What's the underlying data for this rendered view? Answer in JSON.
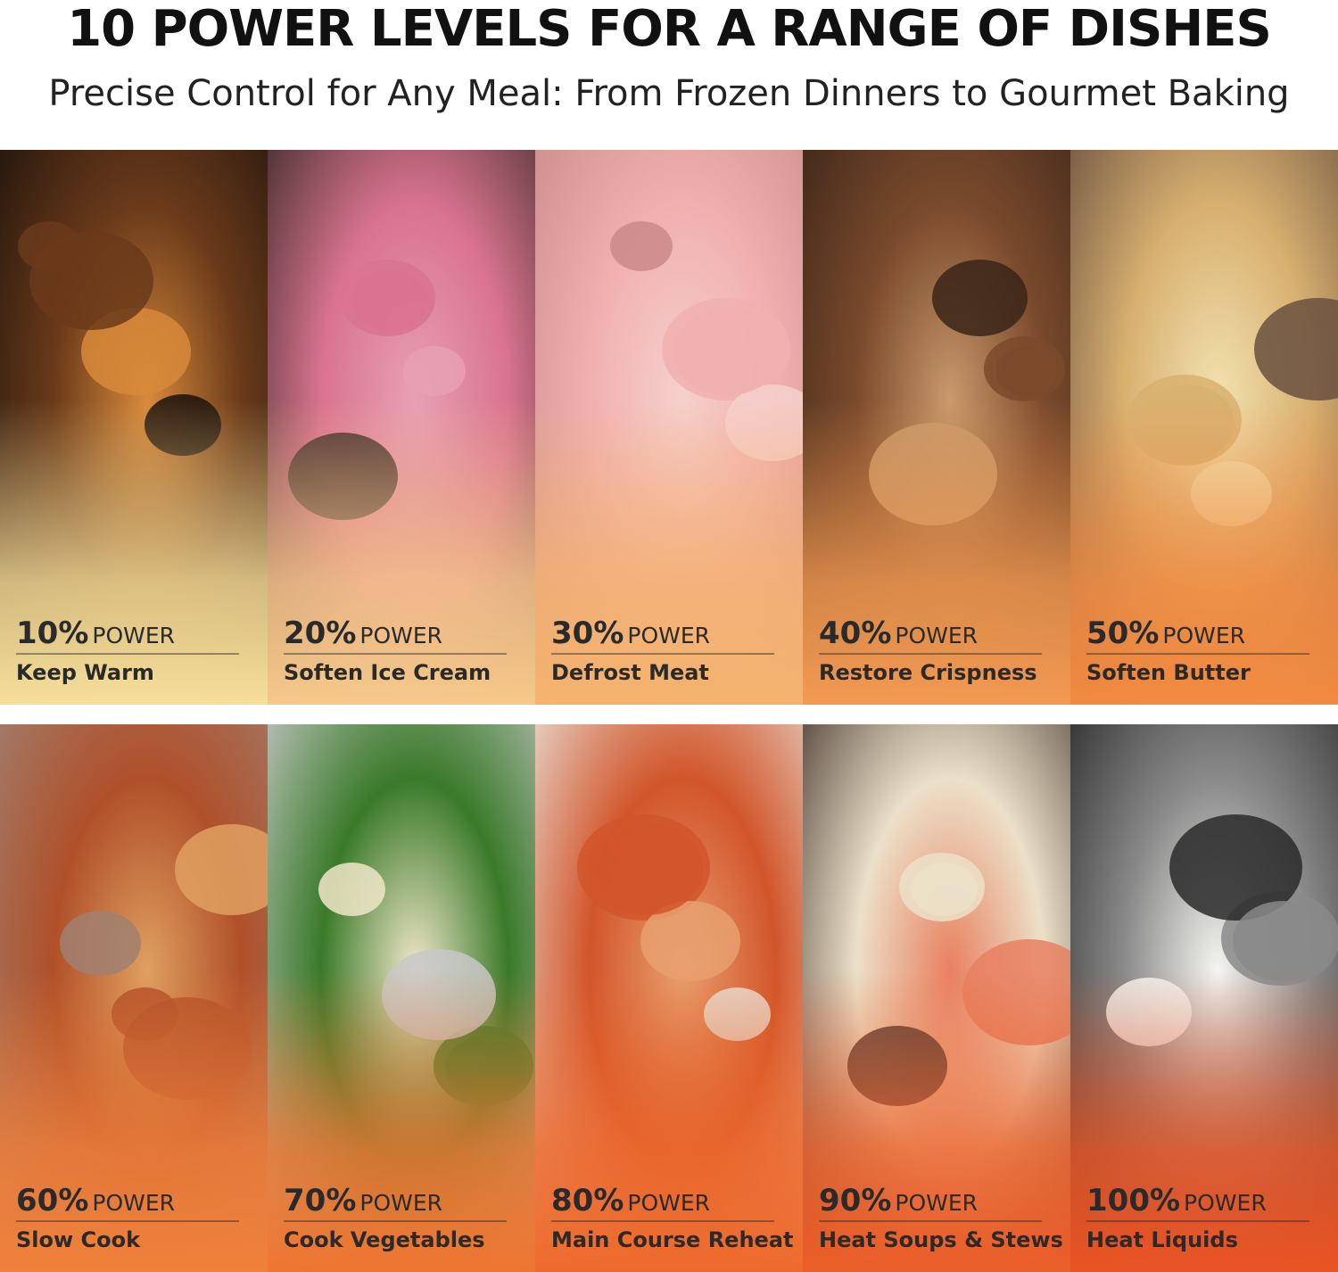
{
  "header": {
    "title": "10 POWER LEVELS FOR A RANGE OF DISHES",
    "subtitle": "Precise Control for Any Meal: From Frozen Dinners to Gourmet Baking"
  },
  "power_word": "POWER",
  "panels": [
    {
      "level": "10%",
      "label": "Keep Warm"
    },
    {
      "level": "20%",
      "label": "Soften Ice Cream"
    },
    {
      "level": "30%",
      "label": "Defrost Meat"
    },
    {
      "level": "40%",
      "label": "Restore Crispness"
    },
    {
      "level": "50%",
      "label": "Soften Butter"
    },
    {
      "level": "60%",
      "label": "Slow Cook"
    },
    {
      "level": "70%",
      "label": "Cook Vegetables"
    },
    {
      "level": "80%",
      "label": "Main Course Reheat"
    },
    {
      "level": "90%",
      "label": "Heat Soups & Stews"
    },
    {
      "level": "100%",
      "label": "Heat Liquids"
    }
  ]
}
